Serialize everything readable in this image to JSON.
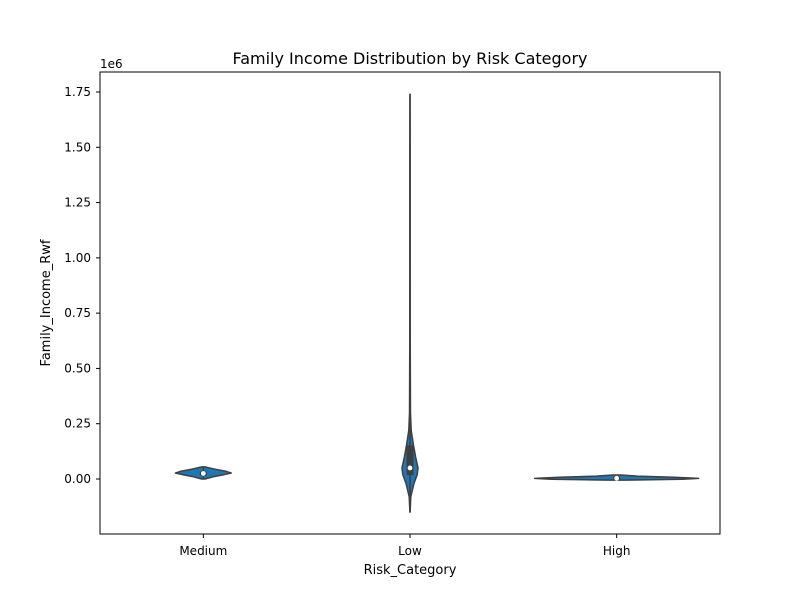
{
  "chart_data": {
    "type": "violin",
    "title": "Family Income Distribution by Risk Category",
    "xlabel": "Risk_Category",
    "ylabel": "Family_Income_Rwf",
    "y_offset_label": "1e6",
    "categories": [
      "Medium",
      "Low",
      "High"
    ],
    "ylim": [
      -0.2,
      1.85
    ],
    "yticks": [
      0.0,
      0.25,
      0.5,
      0.75,
      1.0,
      1.25,
      1.5,
      1.75
    ],
    "ytick_labels": [
      "0.00",
      "0.25",
      "0.50",
      "0.75",
      "1.00",
      "1.25",
      "1.50",
      "1.75"
    ],
    "grid": false,
    "colors": {
      "fill": "#1f77b4",
      "box": "#3f3f3f",
      "median": "#ffffff"
    },
    "violins": [
      {
        "category": "Medium",
        "min": 0.0,
        "max": 0.055,
        "q1": 0.017,
        "median": 0.025,
        "q3": 0.032,
        "profile": [
          [
            0.0,
            0.06
          ],
          [
            0.01,
            0.35
          ],
          [
            0.02,
            0.75
          ],
          [
            0.027,
            1.0
          ],
          [
            0.035,
            0.8
          ],
          [
            0.045,
            0.4
          ],
          [
            0.055,
            0.05
          ]
        ]
      },
      {
        "category": "Low",
        "min": -0.15,
        "max": 1.74,
        "q1": 0.02,
        "median": 0.05,
        "q3": 0.15,
        "profile": [
          [
            -0.15,
            0.01
          ],
          [
            -0.08,
            0.1
          ],
          [
            -0.02,
            0.5
          ],
          [
            0.02,
            0.9
          ],
          [
            0.05,
            1.0
          ],
          [
            0.1,
            0.7
          ],
          [
            0.15,
            0.45
          ],
          [
            0.22,
            0.15
          ],
          [
            0.3,
            0.06
          ],
          [
            0.6,
            0.03
          ],
          [
            1.0,
            0.02
          ],
          [
            1.5,
            0.02
          ],
          [
            1.74,
            0.005
          ]
        ]
      },
      {
        "category": "High",
        "min": -0.005,
        "max": 0.018,
        "q1": -0.002,
        "median": 0.003,
        "q3": 0.01,
        "profile": [
          [
            -0.005,
            0.1
          ],
          [
            -0.001,
            0.8
          ],
          [
            0.003,
            1.0
          ],
          [
            0.008,
            0.7
          ],
          [
            0.013,
            0.25
          ],
          [
            0.018,
            0.05
          ]
        ]
      }
    ]
  }
}
